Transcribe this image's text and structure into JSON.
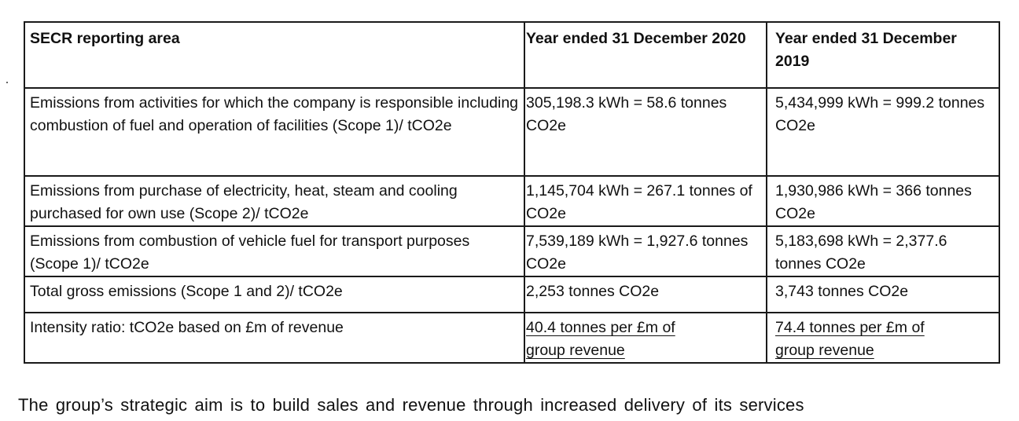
{
  "table": {
    "headers": [
      "SECR reporting area",
      "Year ended 31 December 2020",
      "Year ended 31 December 2019"
    ],
    "rows": [
      {
        "area": "Emissions from activities for which the company is responsible including combustion of fuel and operation of facilities (Scope 1)/ tCO2e",
        "y2020": "305,198.3 kWh = 58.6 tonnes CO2e",
        "y2019": "5,434,999 kWh = 999.2 tonnes CO2e"
      },
      {
        "area": "Emissions from purchase of electricity, heat, steam and cooling purchased for own use (Scope 2)/ tCO2e",
        "y2020": "1,145,704 kWh = 267.1 tonnes of CO2e",
        "y2019": "1,930,986 kWh = 366 tonnes CO2e"
      },
      {
        "area": "Emissions from combustion of vehicle fuel for transport purposes (Scope 1)/ tCO2e",
        "y2020": "7,539,189 kWh = 1,927.6 tonnes CO2e",
        "y2019": "5,183,698 kWh = 2,377.6 tonnes CO2e"
      },
      {
        "area": "Total gross emissions (Scope 1 and 2)/ tCO2e",
        "y2020": "2,253 tonnes CO2e",
        "y2019": "3,743 tonnes CO2e"
      },
      {
        "area": "Intensity ratio: tCO2e based on £m of revenue",
        "y2020_line1": "40.4 tonnes per £m of",
        "y2020_line2": "group revenue",
        "y2019_line1": "74.4 tonnes per £m of",
        "y2019_line2": "group revenue"
      }
    ]
  },
  "trailing_text": "The group’s strategic aim is to build sales and revenue through increased delivery of its services"
}
